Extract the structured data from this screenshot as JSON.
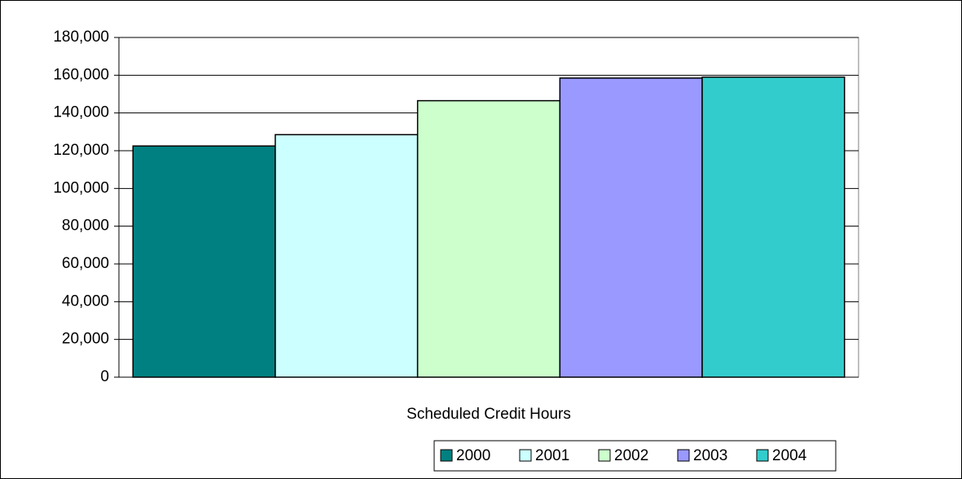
{
  "chart_data": {
    "type": "bar",
    "categories": [
      "Scheduled Credit Hours"
    ],
    "series": [
      {
        "name": "2000",
        "color": "#008080",
        "values": [
          122500
        ]
      },
      {
        "name": "2001",
        "color": "#ccffff",
        "values": [
          128500
        ]
      },
      {
        "name": "2002",
        "color": "#ccffcc",
        "values": [
          146500
        ]
      },
      {
        "name": "2003",
        "color": "#9999ff",
        "values": [
          158500
        ]
      },
      {
        "name": "2004",
        "color": "#33cccc",
        "values": [
          159000
        ]
      }
    ],
    "ylim": [
      0,
      180000
    ],
    "yticks": [
      0,
      {
        "value": 20000,
        "label": "20,000"
      },
      {
        "value": 40000,
        "label": "40,000"
      },
      {
        "value": 60000,
        "label": "60,000"
      },
      {
        "value": 80000,
        "label": "80,000"
      },
      {
        "value": 100000,
        "label": "100,000"
      },
      {
        "value": 120000,
        "label": "120,000"
      },
      {
        "value": 140000,
        "label": "140,000"
      },
      {
        "value": 160000,
        "label": "160,000"
      },
      {
        "value": 180000,
        "label": "180,000"
      }
    ],
    "grid": true,
    "legend": "bottom"
  }
}
